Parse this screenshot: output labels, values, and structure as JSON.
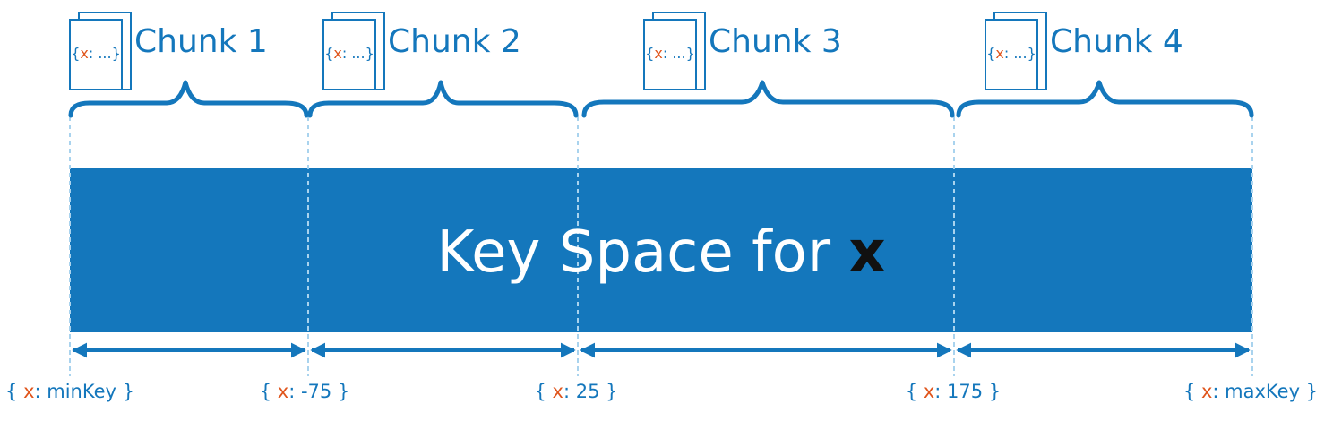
{
  "title": {
    "prefix": "Key Space for ",
    "field": "x"
  },
  "chunks": [
    {
      "label": "Chunk 1",
      "doc": {
        "open": "{",
        "field": "x",
        "rest": ": ...",
        "close": "}"
      }
    },
    {
      "label": "Chunk 2",
      "doc": {
        "open": "{",
        "field": "x",
        "rest": ": ...",
        "close": "}"
      }
    },
    {
      "label": "Chunk 3",
      "doc": {
        "open": "{",
        "field": "x",
        "rest": ": ...",
        "close": "}"
      }
    },
    {
      "label": "Chunk 4",
      "doc": {
        "open": "{",
        "field": "x",
        "rest": ": ...",
        "close": "}"
      }
    }
  ],
  "boundaries": [
    {
      "open": "{ ",
      "field": "x",
      "value": ": minKey }"
    },
    {
      "open": "{ ",
      "field": "x",
      "value": ": -75 }"
    },
    {
      "open": "{ ",
      "field": "x",
      "value": ": 25 }"
    },
    {
      "open": "{ ",
      "field": "x",
      "value": ": 175 }"
    },
    {
      "open": "{ ",
      "field": "x",
      "value": ": maxKey }"
    }
  ],
  "colors": {
    "primary": "#1477bc",
    "guide": "#a9d3ee",
    "accent": "#e0551c",
    "title_text": "#ffffff",
    "field_text": "#111111"
  }
}
